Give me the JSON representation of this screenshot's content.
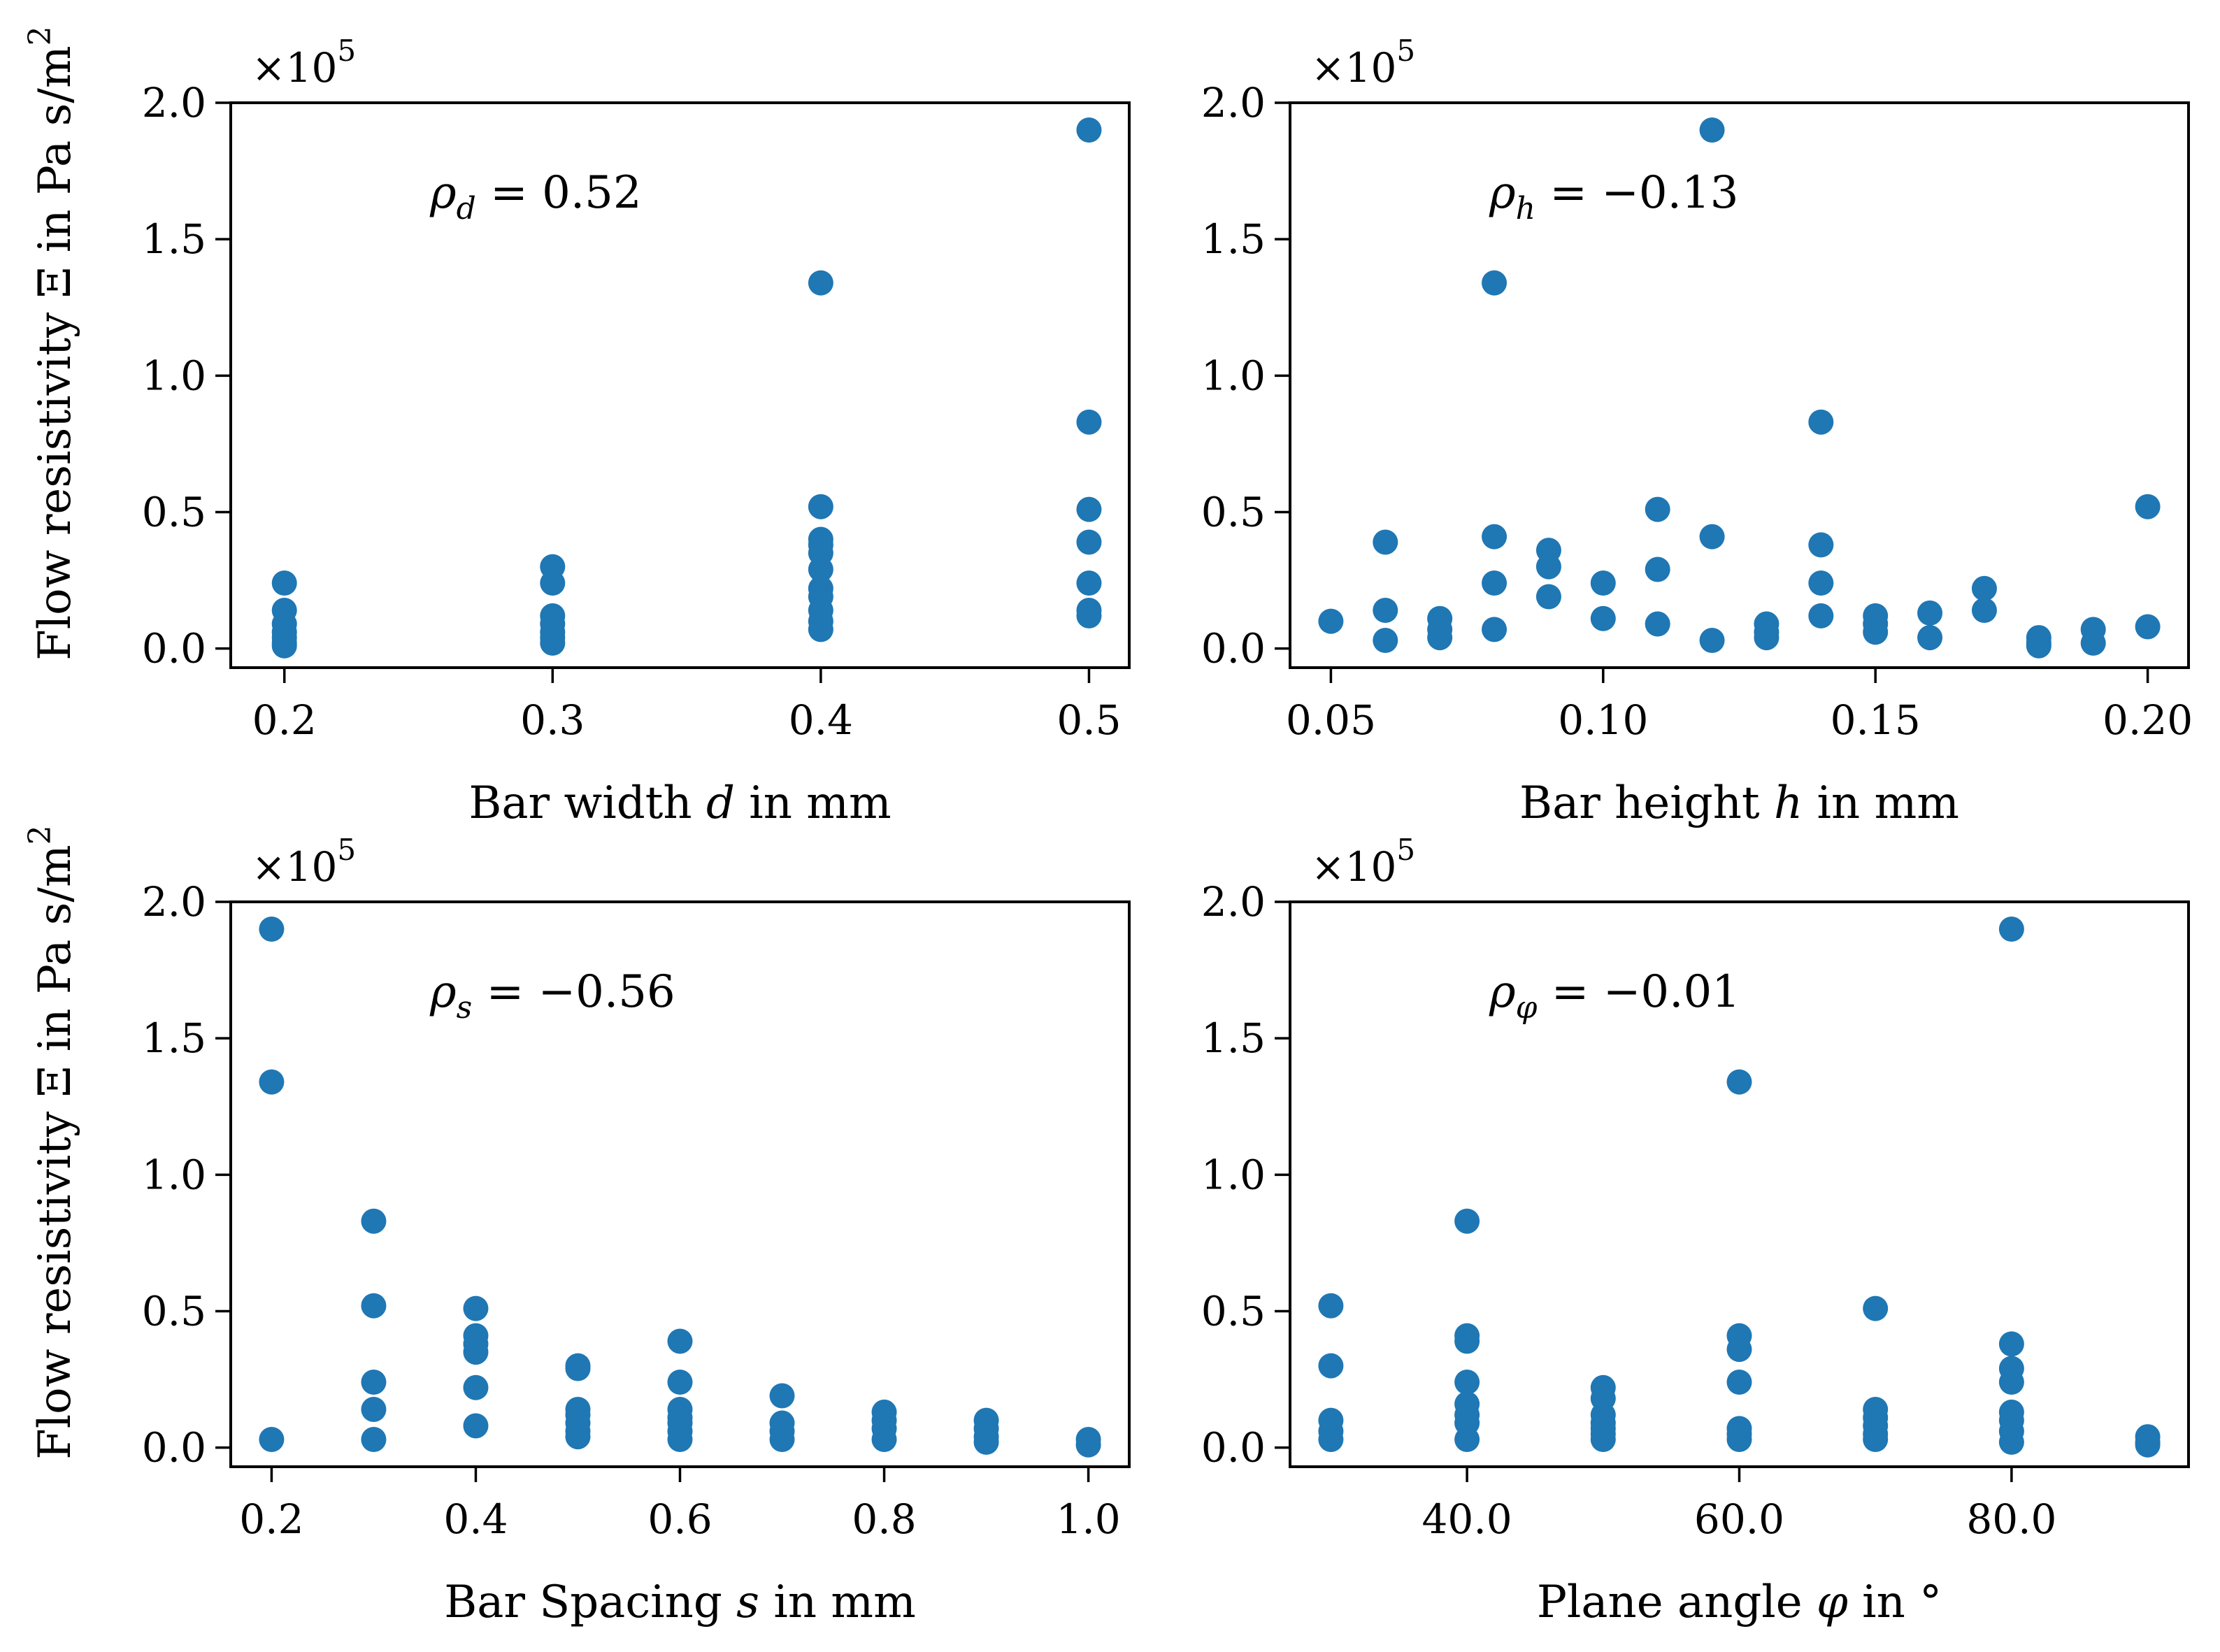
{
  "colors": {
    "points": "#1f77b4",
    "axes": "#000000",
    "background": "#ffffff"
  },
  "shared": {
    "ylabel": "Flow resistivity Ξ in Pa s/m",
    "ylabel_sup": "2",
    "y_multiplier": "×10",
    "y_multiplier_exp": "5"
  },
  "chart_data": [
    {
      "type": "scatter",
      "id": "width",
      "xlabel_pre": "Bar width ",
      "xlabel_var": "d",
      "xlabel_post": " in mm",
      "annotation_symbol": "ρ",
      "annotation_sub": "d",
      "annotation_value": " = 0.52",
      "xlim": [
        0.18,
        0.515
      ],
      "ylim": [
        -0.07,
        2.0
      ],
      "xticks": [
        0.2,
        0.3,
        0.4,
        0.5
      ],
      "xtick_labels": [
        "0.2",
        "0.3",
        "0.4",
        "0.5"
      ],
      "yticks": [
        0.0,
        0.5,
        1.0,
        1.5,
        2.0
      ],
      "ytick_labels": [
        "0.0",
        "0.5",
        "1.0",
        "1.5",
        "2.0"
      ],
      "x": [
        0.2,
        0.2,
        0.2,
        0.2,
        0.2,
        0.2,
        0.2,
        0.3,
        0.3,
        0.3,
        0.3,
        0.3,
        0.3,
        0.3,
        0.4,
        0.4,
        0.4,
        0.4,
        0.4,
        0.4,
        0.4,
        0.4,
        0.4,
        0.4,
        0.4,
        0.5,
        0.5,
        0.5,
        0.5,
        0.5,
        0.5,
        0.5
      ],
      "y": [
        0.24,
        0.14,
        0.09,
        0.06,
        0.04,
        0.02,
        0.01,
        0.3,
        0.24,
        0.12,
        0.09,
        0.06,
        0.04,
        0.02,
        1.34,
        0.52,
        0.4,
        0.38,
        0.35,
        0.29,
        0.22,
        0.19,
        0.14,
        0.1,
        0.07,
        1.9,
        0.83,
        0.51,
        0.39,
        0.24,
        0.14,
        0.12
      ]
    },
    {
      "type": "scatter",
      "id": "height",
      "xlabel_pre": "Bar height ",
      "xlabel_var": "h",
      "xlabel_post": " in mm",
      "annotation_symbol": "ρ",
      "annotation_sub": "h",
      "annotation_value": " = −0.13",
      "xlim": [
        0.0425,
        0.2075
      ],
      "ylim": [
        -0.07,
        2.0
      ],
      "xticks": [
        0.05,
        0.1,
        0.15,
        0.2
      ],
      "xtick_labels": [
        "0.05",
        "0.10",
        "0.15",
        "0.20"
      ],
      "yticks": [
        0.0,
        0.5,
        1.0,
        1.5,
        2.0
      ],
      "ytick_labels": [
        "0.0",
        "0.5",
        "1.0",
        "1.5",
        "2.0"
      ],
      "x": [
        0.05,
        0.06,
        0.06,
        0.06,
        0.07,
        0.07,
        0.07,
        0.08,
        0.08,
        0.08,
        0.08,
        0.09,
        0.09,
        0.09,
        0.1,
        0.1,
        0.11,
        0.11,
        0.11,
        0.12,
        0.12,
        0.12,
        0.13,
        0.13,
        0.13,
        0.14,
        0.14,
        0.14,
        0.14,
        0.15,
        0.15,
        0.15,
        0.16,
        0.16,
        0.17,
        0.17,
        0.18,
        0.18,
        0.18,
        0.19,
        0.19,
        0.2,
        0.2
      ],
      "y": [
        0.1,
        0.39,
        0.14,
        0.03,
        0.11,
        0.07,
        0.04,
        1.34,
        0.41,
        0.24,
        0.07,
        0.36,
        0.3,
        0.19,
        0.24,
        0.11,
        0.51,
        0.29,
        0.09,
        1.9,
        0.41,
        0.03,
        0.09,
        0.06,
        0.04,
        0.83,
        0.38,
        0.24,
        0.12,
        0.12,
        0.09,
        0.06,
        0.13,
        0.04,
        0.22,
        0.14,
        0.04,
        0.02,
        0.01,
        0.07,
        0.02,
        0.52,
        0.08
      ]
    },
    {
      "type": "scatter",
      "id": "spacing",
      "xlabel_pre": "Bar Spacing ",
      "xlabel_var": "s",
      "xlabel_post": " in mm",
      "annotation_symbol": "ρ",
      "annotation_sub": "s",
      "annotation_value": " = −0.56",
      "xlim": [
        0.16,
        1.04
      ],
      "ylim": [
        -0.07,
        2.0
      ],
      "xticks": [
        0.2,
        0.4,
        0.6,
        0.8,
        1.0
      ],
      "xtick_labels": [
        "0.2",
        "0.4",
        "0.6",
        "0.8",
        "1.0"
      ],
      "yticks": [
        0.0,
        0.5,
        1.0,
        1.5,
        2.0
      ],
      "ytick_labels": [
        "0.0",
        "0.5",
        "1.0",
        "1.5",
        "2.0"
      ],
      "x": [
        0.2,
        0.2,
        0.2,
        0.3,
        0.3,
        0.3,
        0.3,
        0.3,
        0.4,
        0.4,
        0.4,
        0.4,
        0.4,
        0.4,
        0.5,
        0.5,
        0.5,
        0.5,
        0.5,
        0.5,
        0.5,
        0.6,
        0.6,
        0.6,
        0.6,
        0.6,
        0.6,
        0.6,
        0.7,
        0.7,
        0.7,
        0.7,
        0.8,
        0.8,
        0.8,
        0.8,
        0.9,
        0.9,
        0.9,
        0.9,
        1.0,
        1.0
      ],
      "y": [
        1.9,
        1.34,
        0.03,
        0.83,
        0.52,
        0.24,
        0.14,
        0.03,
        0.51,
        0.41,
        0.38,
        0.35,
        0.22,
        0.08,
        0.3,
        0.29,
        0.14,
        0.12,
        0.09,
        0.06,
        0.04,
        0.39,
        0.24,
        0.14,
        0.11,
        0.09,
        0.06,
        0.03,
        0.19,
        0.09,
        0.06,
        0.03,
        0.13,
        0.1,
        0.07,
        0.03,
        0.1,
        0.07,
        0.04,
        0.02,
        0.03,
        0.01
      ]
    },
    {
      "type": "scatter",
      "id": "angle",
      "xlabel_pre": "Plane angle ",
      "xlabel_var": "φ",
      "xlabel_post": " in °",
      "annotation_symbol": "ρ",
      "annotation_sub": "φ",
      "annotation_value": " = −0.01",
      "xlim": [
        27.0,
        93.0
      ],
      "ylim": [
        -0.07,
        2.0
      ],
      "xticks": [
        40.0,
        60.0,
        80.0
      ],
      "xtick_labels": [
        "40.0",
        "60.0",
        "80.0"
      ],
      "yticks": [
        0.0,
        0.5,
        1.0,
        1.5,
        2.0
      ],
      "ytick_labels": [
        "0.0",
        "0.5",
        "1.0",
        "1.5",
        "2.0"
      ],
      "x": [
        30,
        30,
        30,
        30,
        30,
        40,
        40,
        40,
        40,
        40,
        40,
        40,
        40,
        50,
        50,
        50,
        50,
        50,
        50,
        50,
        60,
        60,
        60,
        60,
        60,
        60,
        60,
        70,
        70,
        70,
        70,
        70,
        70,
        80,
        80,
        80,
        80,
        80,
        80,
        80,
        80,
        90,
        90,
        90
      ],
      "y": [
        0.52,
        0.3,
        0.1,
        0.06,
        0.03,
        0.83,
        0.41,
        0.39,
        0.24,
        0.16,
        0.12,
        0.09,
        0.03,
        0.22,
        0.18,
        0.12,
        0.09,
        0.07,
        0.05,
        0.03,
        1.34,
        0.41,
        0.36,
        0.24,
        0.07,
        0.05,
        0.03,
        0.51,
        0.14,
        0.11,
        0.08,
        0.05,
        0.03,
        1.9,
        0.38,
        0.29,
        0.24,
        0.13,
        0.1,
        0.06,
        0.02,
        0.04,
        0.02,
        0.01
      ]
    }
  ]
}
